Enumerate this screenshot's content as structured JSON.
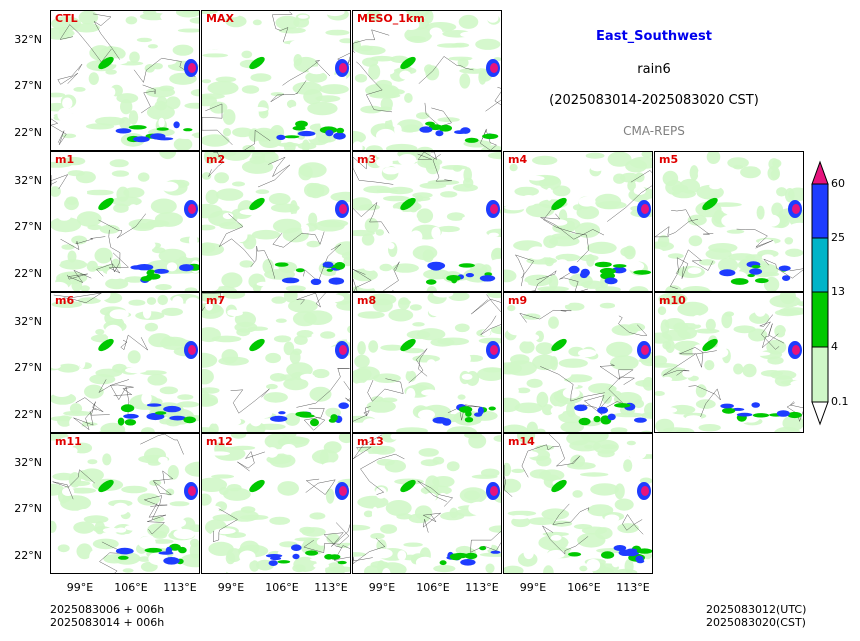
{
  "header": {
    "region": "East_Southwest",
    "variable": "rain6",
    "period": "(2025083014-2025083020 CST)",
    "model": "CMA-REPS"
  },
  "panels": [
    "CTL",
    "MAX",
    "MESO_1km",
    "m1",
    "m2",
    "m3",
    "m4",
    "m5",
    "m6",
    "m7",
    "m8",
    "m9",
    "m10",
    "m11",
    "m12",
    "m13",
    "m14"
  ],
  "axes": {
    "lat_ticks": [
      "32°N",
      "27°N",
      "22°N"
    ],
    "lon_ticks": [
      "99°E",
      "106°E",
      "113°E"
    ]
  },
  "colorbar": {
    "levels": [
      "0.1",
      "4",
      "13",
      "25",
      "60"
    ],
    "colors": [
      "#ffffff",
      "#d0f7c8",
      "#00c800",
      "#00b4c8",
      "#1e3cff",
      "#e6147d"
    ]
  },
  "footer": {
    "init_line1": "2025083006  +  006h",
    "init_line2": "2025083014  +  006h",
    "valid_line1": "2025083012(UTC)",
    "valid_line2": "2025083020(CST)"
  }
}
